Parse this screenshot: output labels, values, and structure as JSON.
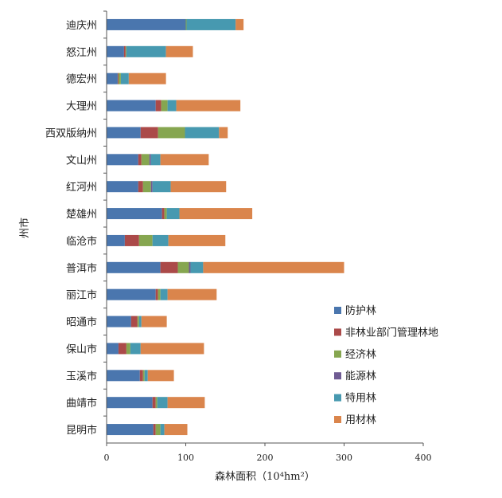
{
  "chart_data": {
    "type": "bar",
    "orientation": "horizontal",
    "stacked": true,
    "categories": [
      "迪庆州",
      "怒江州",
      "德宏州",
      "大理州",
      "西双版纳州",
      "文山州",
      "红河州",
      "楚雄州",
      "临沧市",
      "普洱市",
      "丽江市",
      "昭通市",
      "保山市",
      "玉溪市",
      "曲靖市",
      "昆明市"
    ],
    "series": [
      {
        "name": "防护林",
        "color": "#4a76ae",
        "values": [
          100,
          22,
          14,
          62,
          43,
          40,
          40,
          70,
          23,
          68,
          62,
          31,
          15,
          42,
          58,
          59
        ]
      },
      {
        "name": "非林业部门管理林地",
        "color": "#ab4a49",
        "values": [
          0,
          2,
          1,
          7,
          22,
          4,
          6,
          3,
          18,
          22,
          3,
          8,
          10,
          4,
          4,
          3
        ]
      },
      {
        "name": "经济林",
        "color": "#86a650",
        "values": [
          1,
          1,
          3,
          8,
          34,
          10,
          10,
          3,
          17,
          14,
          3,
          2,
          5,
          2,
          2,
          6
        ]
      },
      {
        "name": "能源林",
        "color": "#6f5b93",
        "values": [
          0,
          0,
          0,
          0,
          0,
          2,
          2,
          0,
          0,
          2,
          0,
          0,
          0,
          0,
          0,
          0
        ]
      },
      {
        "name": "特用林",
        "color": "#4799b0",
        "values": [
          62,
          50,
          10,
          11,
          43,
          12,
          23,
          16,
          20,
          16,
          9,
          3,
          13,
          4,
          13,
          5
        ]
      },
      {
        "name": "用材林",
        "color": "#da854c",
        "values": [
          10,
          34,
          47,
          81,
          11,
          61,
          70,
          92,
          72,
          178,
          62,
          32,
          80,
          33,
          47,
          29
        ]
      }
    ],
    "xlim": [
      0,
      400
    ],
    "xticks": [
      0,
      100,
      200,
      300,
      400
    ],
    "xlabel": "森林面积（10⁴hm²）",
    "ylabel": "州市",
    "grid": false,
    "legend_position": "right"
  }
}
